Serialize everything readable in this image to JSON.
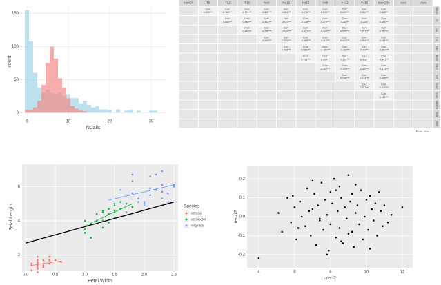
{
  "chart_data": [
    {
      "type": "histogram",
      "xlabel": "NCalls",
      "ylabel": "count",
      "bins": [
        -0.5,
        0.5,
        1.5,
        2.5,
        3.5,
        4.5,
        5.5,
        6.5,
        7.5,
        8.5,
        9.5,
        10.5,
        11.5,
        12.5,
        13.5,
        14.5,
        15.5,
        16.5,
        17.5,
        18.5,
        19.5,
        20.5,
        21.5,
        22.5,
        23.5,
        24.5,
        25.5,
        26.5,
        27.5,
        28.5,
        29.5,
        30.5,
        31.5,
        32.5
      ],
      "series": [
        {
          "color": "#9fd3e6",
          "values": [
            155,
            108,
            60,
            38,
            30,
            35,
            30,
            28,
            30,
            25,
            28,
            22,
            22,
            14,
            18,
            12,
            8,
            10,
            5,
            5,
            4,
            0,
            5,
            0,
            3,
            4,
            0,
            3,
            0,
            0,
            3,
            3,
            0
          ]
        },
        {
          "color": "#f48a84",
          "values": [
            4,
            4,
            8,
            18,
            42,
            75,
            100,
            82,
            52,
            38,
            22,
            10,
            6,
            3,
            2,
            0,
            0,
            0,
            0,
            0,
            0,
            0,
            0,
            0,
            0,
            0,
            0,
            0,
            0,
            0,
            0,
            0,
            0
          ]
        }
      ],
      "xlim": [
        -1.5,
        33.5
      ],
      "xticks": [
        0,
        10,
        20,
        30
      ],
      "ylim": [
        -7,
        162
      ],
      "yticks": [
        0,
        50,
        100,
        150
      ],
      "grid": true
    },
    {
      "type": "matrix",
      "vars": [
        "maxO3",
        "T9",
        "T12",
        "T15",
        "Ne9",
        "Ne12",
        "Ne15",
        "Vx9",
        "Vx12",
        "Vx15",
        "maxO3v",
        "vent",
        "pluie"
      ],
      "corr_prefix": "Corr:",
      "corr": [
        [
          "0.699***",
          "0.784***",
          "0.774***",
          "-0.622***",
          "-0.641***",
          "-0.478***",
          "0.528***",
          "0.431***",
          "0.392***",
          "0.685***"
        ],
        [
          "0.883***",
          "0.846***",
          "-0.483***",
          "-0.470***",
          "-0.328***",
          "0.376***",
          "0.282**",
          "0.225*",
          "0.581***"
        ],
        [
          "0.946***",
          "-0.585***",
          "-0.632***",
          "-0.477***",
          "0.436***",
          "0.395***",
          "0.357***",
          "0.610***"
        ],
        [
          "-0.563***",
          "-0.604***",
          "-0.485***",
          "0.417***",
          "0.427***",
          "0.394***",
          "0.581***"
        ],
        [
          "0.788***",
          "0.552***",
          "-0.489***",
          "-0.492***",
          "-0.404***",
          "-0.564***"
        ],
        [
          "0.738***",
          "-0.504***",
          "-0.521***",
          "-0.436***",
          "-0.461***"
        ],
        [
          "-0.407***",
          "-0.436***",
          "-0.437***",
          "-0.373***"
        ],
        [
          "0.748***",
          "0.613***",
          "0.485***"
        ],
        [
          "0.827***",
          "0.402***"
        ],
        [
          "0.314***"
        ]
      ],
      "pluie_levels": [
        "Pluie",
        "Sec"
      ]
    },
    {
      "type": "scatter",
      "xlabel": "Petal Width",
      "ylabel": "Petal Length",
      "legend_title": "Species",
      "series": [
        {
          "name": "setosa",
          "color": "#f8766d",
          "x": [
            0.2,
            0.2,
            0.2,
            0.4,
            0.3,
            0.2,
            0.1,
            0.1,
            0.2,
            0.4,
            0.3,
            0.2,
            0.5,
            0.6,
            0.3,
            0.1,
            0.2,
            0.4,
            0.3,
            0.2
          ],
          "y": [
            1.4,
            1.3,
            1.5,
            1.7,
            1.4,
            1.6,
            1.5,
            1.1,
            1.2,
            1.5,
            1.3,
            1.9,
            1.7,
            1.6,
            1.5,
            1.4,
            1.0,
            1.9,
            1.7,
            1.7
          ]
        },
        {
          "name": "versicolor",
          "color": "#00ba38",
          "x": [
            1.4,
            1.5,
            1.5,
            1.3,
            1.5,
            1.3,
            1.6,
            1.0,
            1.3,
            1.4,
            1.0,
            1.5,
            1.0,
            1.4,
            1.3,
            1.1,
            1.8,
            1.2,
            1.7,
            1.6,
            1.1,
            1.2
          ],
          "y": [
            4.7,
            4.5,
            4.9,
            4.0,
            4.6,
            4.5,
            4.7,
            3.3,
            4.6,
            3.9,
            3.5,
            4.2,
            4.0,
            4.4,
            3.6,
            3.0,
            4.8,
            4.0,
            5.0,
            5.1,
            3.8,
            4.4
          ]
        },
        {
          "name": "virginica",
          "color": "#619cff",
          "x": [
            2.5,
            1.9,
            2.1,
            1.8,
            2.2,
            2.1,
            1.7,
            1.8,
            2.5,
            2.0,
            1.9,
            2.1,
            2.0,
            2.4,
            2.3,
            2.2,
            2.3,
            1.5,
            2.3,
            2.0,
            1.8,
            2.4,
            1.6,
            2.3
          ],
          "y": [
            6.0,
            5.1,
            5.9,
            5.6,
            5.8,
            6.6,
            4.5,
            6.3,
            6.1,
            5.1,
            5.3,
            5.5,
            5.0,
            5.1,
            5.3,
            6.7,
            6.9,
            5.0,
            5.7,
            4.9,
            6.7,
            5.6,
            5.8,
            6.1
          ]
        }
      ],
      "trend_lines": [
        {
          "color": "#000000",
          "x": [
            0,
            2.5
          ],
          "y": [
            2.7,
            5.1
          ]
        },
        {
          "color": "#f8766d",
          "x": [
            0.1,
            0.6
          ],
          "y": [
            1.4,
            1.65
          ]
        },
        {
          "color": "#00ba38",
          "x": [
            1.0,
            1.8
          ],
          "y": [
            3.7,
            5.0
          ]
        },
        {
          "color": "#619cff",
          "x": [
            1.4,
            2.5
          ],
          "y": [
            5.2,
            6.1
          ]
        }
      ],
      "xlim": [
        -0.06,
        2.57
      ],
      "xticks": [
        {
          "value": 0,
          "label": "0.0"
        },
        0.5,
        {
          "value": 1,
          "label": "1.0"
        },
        1.5,
        {
          "value": 2,
          "label": "2.0"
        },
        2.5
      ],
      "ylim": [
        1.1,
        7.3
      ],
      "yticks": [
        2,
        4,
        6
      ],
      "grid": true
    },
    {
      "type": "scatter",
      "xlabel": "pred2",
      "ylabel": "resid2",
      "series": [
        {
          "color": "#000000",
          "x": [
            5.1,
            5.3,
            5.6,
            5.8,
            6.0,
            6.1,
            6.3,
            6.4,
            6.6,
            6.7,
            6.9,
            7.0,
            7.1,
            7.2,
            7.3,
            7.4,
            7.5,
            7.6,
            7.7,
            7.8,
            7.9,
            8.0,
            8.0,
            8.1,
            8.2,
            8.3,
            8.4,
            8.5,
            8.5,
            8.6,
            8.7,
            8.8,
            8.9,
            9.0,
            9.0,
            9.1,
            9.2,
            9.3,
            9.4,
            9.5,
            9.6,
            9.7,
            9.8,
            9.9,
            10.0,
            10.1,
            10.2,
            10.3,
            10.4,
            10.5,
            10.6,
            10.7,
            10.8,
            10.9,
            11.0,
            11.2,
            11.4,
            6.2,
            7.0,
            7.8,
            8.6,
            9.4,
            10.2,
            5.9,
            6.8,
            4.0,
            12.0,
            9.2,
            8.3,
            7.4
          ],
          "y": [
            0.02,
            -0.08,
            0.1,
            -0.03,
            0.05,
            -0.12,
            0.08,
            0.0,
            -0.05,
            0.15,
            -0.1,
            0.04,
            0.12,
            -0.15,
            0.06,
            -0.02,
            0.18,
            -0.07,
            0.09,
            0.01,
            -0.18,
            0.13,
            -0.04,
            0.07,
            0.2,
            -0.11,
            0.03,
            -0.06,
            0.16,
            0.1,
            -0.14,
            0.05,
            -0.01,
            0.22,
            -0.09,
            0.08,
            0.12,
            -0.16,
            0.02,
            0.06,
            -0.04,
            0.14,
            -0.12,
            0.0,
            0.09,
            -0.07,
            0.11,
            0.04,
            -0.02,
            0.07,
            -0.1,
            0.13,
            0.03,
            -0.05,
            0.06,
            -0.03,
            0.01,
            -0.06,
            0.19,
            -0.2,
            -0.13,
            0.17,
            -0.17,
            0.11,
            0.03,
            -0.22,
            0.05,
            -0.08,
            0.14,
            -0.01
          ]
        }
      ],
      "xlim": [
        3.35,
        12.58
      ],
      "xticks": [
        4,
        6,
        8,
        10,
        12
      ],
      "ylim": [
        -0.27,
        0.27
      ],
      "yticks": [
        -0.2,
        -0.1,
        {
          "value": 0,
          "label": "0.0"
        },
        0.1,
        0.2
      ],
      "grid": true
    }
  ]
}
